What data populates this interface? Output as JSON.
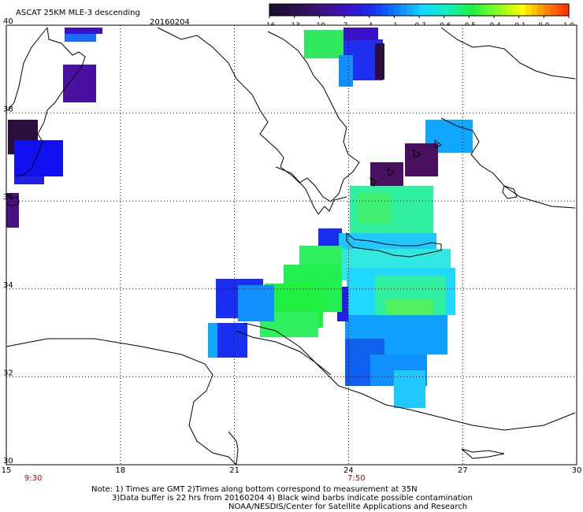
{
  "header": {
    "product": "ASCAT 25KM MLE-3 descending",
    "date": "20160204"
  },
  "colorbar": {
    "labels": [
      "-16",
      "-13",
      "-10",
      "-7",
      "-4",
      "-1",
      "-0.7",
      "-0.6",
      "-0.5",
      "-0.4",
      "-0.1",
      "0.0",
      "1.0"
    ],
    "colors": [
      "#1a0f2e",
      "#2d1050",
      "#3c1380",
      "#3a10c8",
      "#1a30f0",
      "#0f80ff",
      "#10d8ff",
      "#10f0c0",
      "#20f040",
      "#80ff20",
      "#ffff00",
      "#ff8000",
      "#ff2000"
    ]
  },
  "axes": {
    "x_ticks": [
      15,
      18,
      21,
      24,
      27,
      30
    ],
    "y_ticks": [
      30,
      32,
      34,
      36,
      38,
      40
    ],
    "x_range": [
      15,
      30
    ],
    "y_range": [
      30,
      40
    ]
  },
  "times": [
    {
      "label": "9:30",
      "lon": 15.5
    },
    {
      "label": "7:50",
      "lon": 24.0
    }
  ],
  "notes": {
    "line1": "Note: 1) Times are GMT 2)Times along bottom correspond to measurement at 35N",
    "line2": "3)Data buffer is 22 hrs from 20160204 4) Black wind barbs indicate possible contamination",
    "line3": "NOAA/NESDIS/Center for Satellite Applications and Research"
  }
}
